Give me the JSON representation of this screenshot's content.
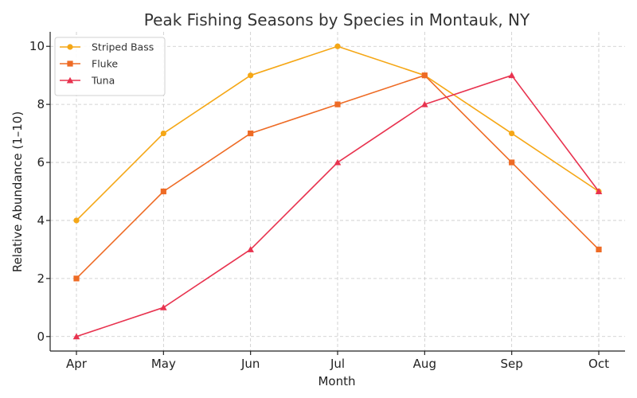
{
  "chart_data": {
    "type": "line",
    "title": "Peak Fishing Seasons by Species in Montauk, NY",
    "xlabel": "Month",
    "ylabel": "Relative Abundance (1–10)",
    "categories": [
      "Apr",
      "May",
      "Jun",
      "Jul",
      "Aug",
      "Sep",
      "Oct"
    ],
    "ylim": [
      -0.5,
      10.5
    ],
    "yticks": [
      0,
      2,
      4,
      6,
      8,
      10
    ],
    "grid": true,
    "legend_position": "top-left",
    "series": [
      {
        "name": "Striped Bass",
        "color": "#F5A716",
        "marker": "circle",
        "values": [
          4,
          7,
          9,
          10,
          9,
          7,
          5
        ]
      },
      {
        "name": "Fluke",
        "color": "#EE6B25",
        "marker": "square",
        "values": [
          2,
          5,
          7,
          8,
          9,
          6,
          3
        ]
      },
      {
        "name": "Tuna",
        "color": "#E8334F",
        "marker": "triangle",
        "values": [
          0,
          1,
          3,
          6,
          8,
          9,
          5
        ]
      }
    ]
  }
}
